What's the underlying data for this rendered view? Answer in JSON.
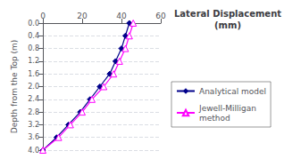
{
  "chart_data": {
    "type": "line",
    "title": "Lateral Displacement\n(mm)",
    "ylabel": "Depth from the Top (m)",
    "xlim": [
      0,
      60
    ],
    "ylim": [
      4,
      0
    ],
    "xticks": [
      0,
      20,
      40,
      60
    ],
    "yticks": [
      {
        "value": 0,
        "label": "0.0"
      },
      0.4,
      0.8,
      1.2,
      1.6,
      {
        "value": 2,
        "label": "2.0"
      },
      2.4,
      2.8,
      3.2,
      3.6,
      {
        "value": 4,
        "label": "4.0"
      }
    ],
    "grid": "y",
    "series": [
      {
        "name": "Analytical model",
        "color": "#00008B",
        "marker": "diamond",
        "line_style": "solid",
        "x": [
          44,
          42,
          40,
          37,
          34,
          29,
          24,
          19,
          13,
          7,
          0
        ],
        "values": [
          0,
          0.4,
          0.8,
          1.2,
          1.6,
          2.0,
          2.4,
          2.8,
          3.2,
          3.6,
          4.0
        ]
      },
      {
        "name": "Jewell-Milligan\nmethod",
        "color": "#FF00FF",
        "marker": "open_triangle",
        "line_style": "solid",
        "x": [
          46,
          44,
          42,
          39,
          36,
          31,
          25,
          20,
          14,
          8,
          0
        ],
        "values": [
          0,
          0.4,
          0.8,
          1.2,
          1.6,
          2.0,
          2.4,
          2.8,
          3.2,
          3.6,
          4.0
        ]
      }
    ]
  }
}
